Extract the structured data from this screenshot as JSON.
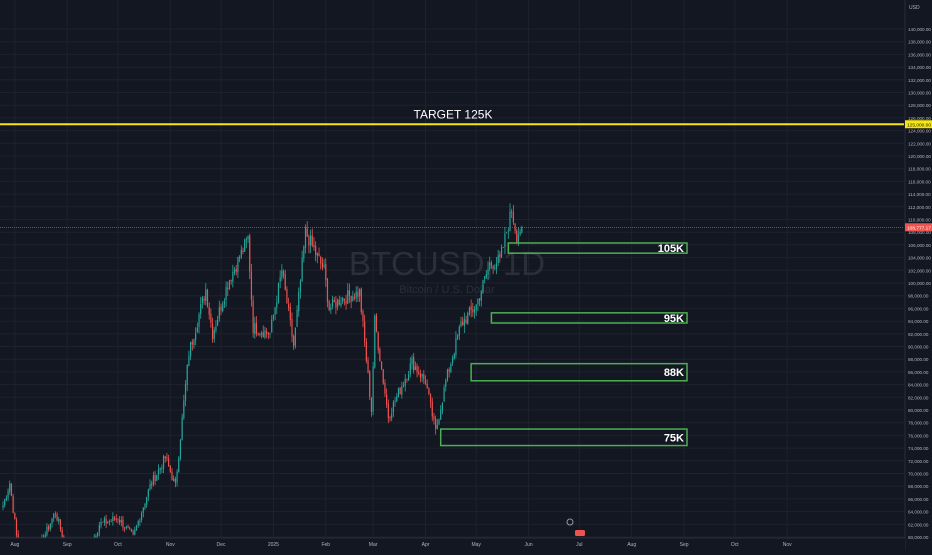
{
  "symbol": "BTCUSD",
  "interval": "1D",
  "description": "Bitcoin / U.S. Dollar",
  "currency": "USD",
  "last_price_label": "108,777.17",
  "target_price_label": "125,000.00",
  "colors": {
    "background": "#131722",
    "grid": "#1e222d",
    "up": "#26a69a",
    "down": "#ef5350",
    "target_line": "#f5e612",
    "zone": "#4caf50",
    "axis_text": "#b2b5be",
    "last_price_line": "#ef5350"
  },
  "chart_data": {
    "type": "candlestick",
    "ylim": [
      59000,
      142000
    ],
    "y_ticks": [
      "60,000.00",
      "62,000.00",
      "64,000.00",
      "66,000.00",
      "68,000.00",
      "70,000.00",
      "72,000.00",
      "74,000.00",
      "76,000.00",
      "78,000.00",
      "80,000.00",
      "82,000.00",
      "84,000.00",
      "86,000.00",
      "88,000.00",
      "90,000.00",
      "92,000.00",
      "94,000.00",
      "96,000.00",
      "98,000.00",
      "100,000.00",
      "102,000.00",
      "104,000.00",
      "106,000.00",
      "108,000.00",
      "110,000.00",
      "112,000.00",
      "114,000.00",
      "116,000.00",
      "118,000.00",
      "120,000.00",
      "122,000.00",
      "124,000.00",
      "126,000.00",
      "128,000.00",
      "130,000.00",
      "132,000.00",
      "134,000.00",
      "136,000.00",
      "138,000.00",
      "140,000.00"
    ],
    "x_ticks": [
      "Aug",
      "Sep",
      "Oct",
      "Nov",
      "Dec",
      "2025",
      "Feb",
      "Mar",
      "Apr",
      "May",
      "Jun",
      "Jul",
      "Aug",
      "Sep",
      "Oct",
      "Nov"
    ],
    "anchors": [
      [
        "2024-07-25",
        65000
      ],
      [
        "2024-07-29",
        68500
      ],
      [
        "2024-08-05",
        54000
      ],
      [
        "2024-08-15",
        58000
      ],
      [
        "2024-08-25",
        64000
      ],
      [
        "2024-09-06",
        53000
      ],
      [
        "2024-09-20",
        62000
      ],
      [
        "2024-10-01",
        63000
      ],
      [
        "2024-10-10",
        60000
      ],
      [
        "2024-10-20",
        68000
      ],
      [
        "2024-10-29",
        72500
      ],
      [
        "2024-11-04",
        68000
      ],
      [
        "2024-11-12",
        89000
      ],
      [
        "2024-11-22",
        99000
      ],
      [
        "2024-11-26",
        92000
      ],
      [
        "2024-12-05",
        100000
      ],
      [
        "2024-12-17",
        107000
      ],
      [
        "2024-12-20",
        93000
      ],
      [
        "2024-12-30",
        92000
      ],
      [
        "2025-01-06",
        102000
      ],
      [
        "2025-01-13",
        90000
      ],
      [
        "2025-01-20",
        108000
      ],
      [
        "2025-01-31",
        102000
      ],
      [
        "2025-02-03",
        96000
      ],
      [
        "2025-02-10",
        97500
      ],
      [
        "2025-02-21",
        98500
      ],
      [
        "2025-02-28",
        80000
      ],
      [
        "2025-03-02",
        94000
      ],
      [
        "2025-03-10",
        79000
      ],
      [
        "2025-03-24",
        87500
      ],
      [
        "2025-04-01",
        84500
      ],
      [
        "2025-04-07",
        76500
      ],
      [
        "2025-04-13",
        84500
      ],
      [
        "2025-04-22",
        93500
      ],
      [
        "2025-05-01",
        96500
      ],
      [
        "2025-05-09",
        103000
      ],
      [
        "2025-05-15",
        103500
      ],
      [
        "2025-05-22",
        111500
      ],
      [
        "2025-05-25",
        107500
      ],
      [
        "2025-05-28",
        108800
      ]
    ],
    "target": {
      "label": "TARGET 125K",
      "value": 125000
    },
    "zones": [
      {
        "label": "105K",
        "low": 104700,
        "high": 106300,
        "start": "2025-05-20"
      },
      {
        "label": "95K",
        "low": 93700,
        "high": 95300,
        "start": "2025-05-10"
      },
      {
        "label": "88K",
        "low": 84600,
        "high": 87300,
        "start": "2025-04-28"
      },
      {
        "label": "75K",
        "low": 74400,
        "high": 77000,
        "start": "2025-04-10"
      }
    ],
    "last_price": 108777.17
  }
}
